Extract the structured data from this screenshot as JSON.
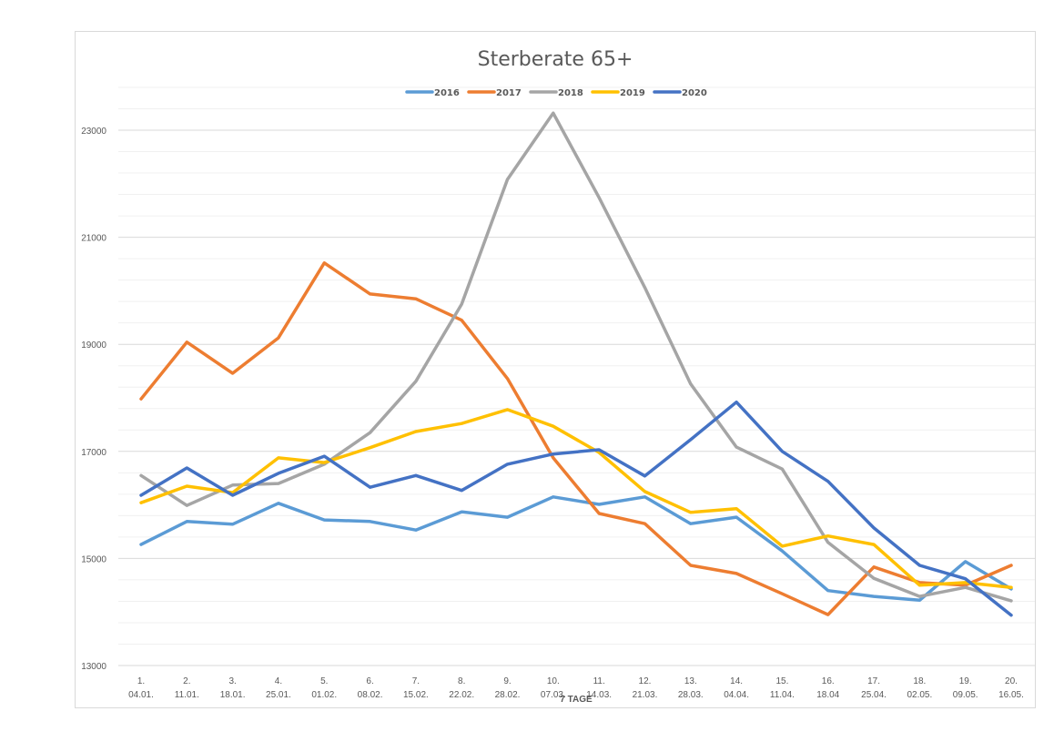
{
  "chart_data": {
    "type": "line",
    "title": "Sterberate 65+",
    "xlabel": "7 TAGE",
    "ylabel": "",
    "ylim": [
      13000,
      23800
    ],
    "yticks": [
      13000,
      15000,
      17000,
      19000,
      21000,
      23000
    ],
    "grid": true,
    "legend_position": "top",
    "categories": [
      [
        "1.",
        "04.01."
      ],
      [
        "2.",
        "11.01."
      ],
      [
        "3.",
        "18.01."
      ],
      [
        "4.",
        "25.01."
      ],
      [
        "5.",
        "01.02."
      ],
      [
        "6.",
        "08.02."
      ],
      [
        "7.",
        "15.02."
      ],
      [
        "8.",
        "22.02."
      ],
      [
        "9.",
        "28.02."
      ],
      [
        "10.",
        "07.03."
      ],
      [
        "11.",
        "14.03."
      ],
      [
        "12.",
        "21.03."
      ],
      [
        "13.",
        "28.03."
      ],
      [
        "14.",
        "04.04."
      ],
      [
        "15.",
        "11.04."
      ],
      [
        "16.",
        "18.04"
      ],
      [
        "17.",
        "25.04."
      ],
      [
        "18.",
        "02.05."
      ],
      [
        "19.",
        "09.05."
      ],
      [
        "20.",
        "16.05."
      ]
    ],
    "series": [
      {
        "name": "2016",
        "color": "#5b9bd5",
        "values": [
          15260,
          15690,
          15640,
          16030,
          15720,
          15690,
          15530,
          15870,
          15770,
          16150,
          16010,
          16150,
          15650,
          15770,
          15140,
          14400,
          14290,
          14220,
          14940,
          14430
        ]
      },
      {
        "name": "2017",
        "color": "#ed7d31",
        "values": [
          17980,
          19040,
          18460,
          19120,
          20520,
          19940,
          19850,
          19450,
          18360,
          16880,
          15840,
          15650,
          14870,
          14720,
          14340,
          13950,
          14840,
          14550,
          14500,
          14870
        ]
      },
      {
        "name": "2018",
        "color": "#a5a5a5",
        "values": [
          16550,
          15990,
          16370,
          16400,
          16760,
          17350,
          18310,
          19750,
          22080,
          23320,
          21740,
          20060,
          18260,
          17080,
          16670,
          15300,
          14630,
          14290,
          14460,
          14210
        ]
      },
      {
        "name": "2019",
        "color": "#ffc000",
        "values": [
          16040,
          16350,
          16230,
          16880,
          16790,
          17070,
          17370,
          17520,
          17780,
          17470,
          16980,
          16250,
          15860,
          15930,
          15230,
          15420,
          15260,
          14500,
          14550,
          14460
        ]
      },
      {
        "name": "2020",
        "color": "#4472c4",
        "values": [
          16180,
          16690,
          16180,
          16590,
          16910,
          16330,
          16550,
          16270,
          16760,
          16950,
          17030,
          16540,
          17220,
          17920,
          17000,
          16440,
          15570,
          14870,
          14620,
          13940
        ]
      }
    ]
  }
}
